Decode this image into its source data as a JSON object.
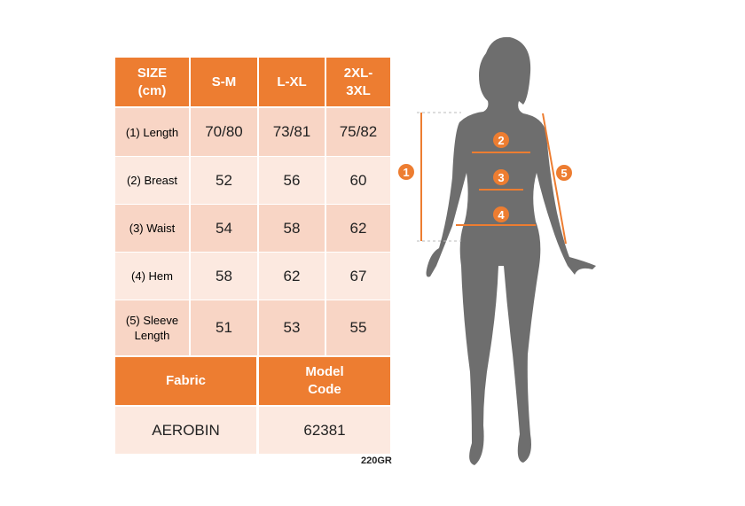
{
  "table": {
    "header": [
      "SIZE (cm)",
      "S-M",
      "L-XL",
      "2XL-3XL"
    ],
    "rows": [
      [
        "(1) Length",
        "70/80",
        "73/81",
        "75/82"
      ],
      [
        "(2) Breast",
        52,
        56,
        60
      ],
      [
        "(3) Waist",
        54,
        58,
        62
      ],
      [
        "(4) Hem",
        58,
        62,
        67
      ],
      [
        "(5) Sleeve Length",
        51,
        53,
        55
      ]
    ],
    "footer_header": [
      "Fabric",
      "Model Code"
    ],
    "footer_values": [
      "AEROBIN",
      62381
    ]
  },
  "note": "220GR",
  "figure": {
    "markers": [
      "1",
      "2",
      "3",
      "4",
      "5"
    ]
  }
}
